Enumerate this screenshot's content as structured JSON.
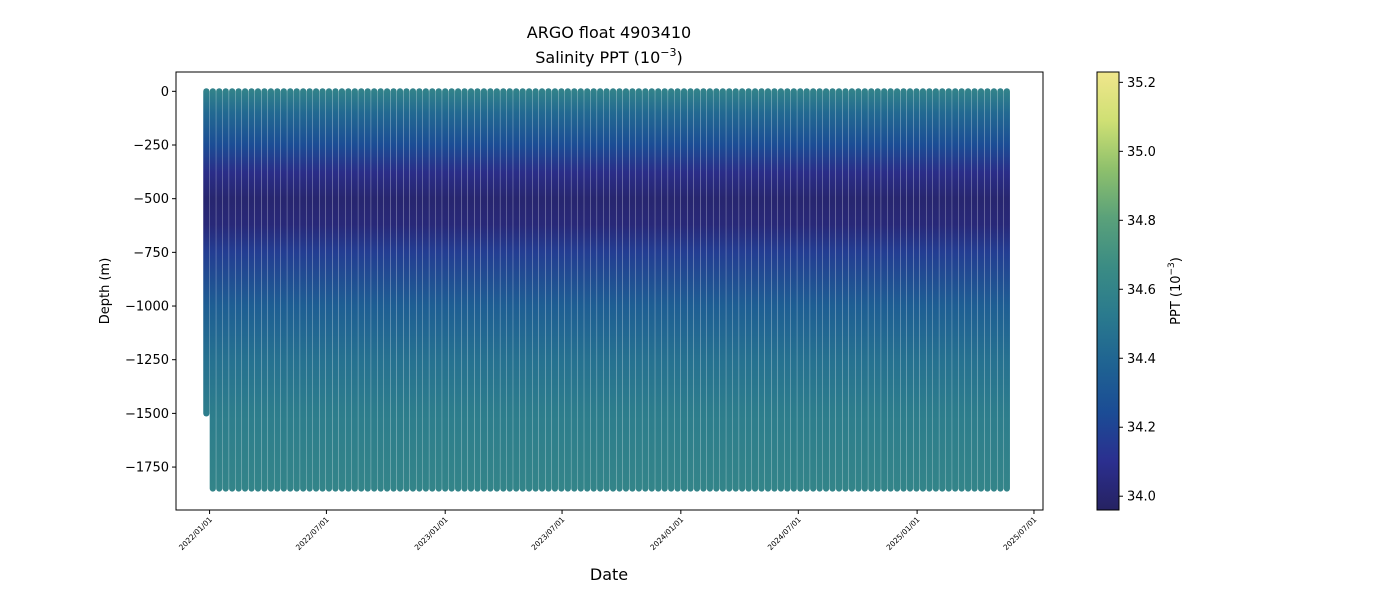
{
  "chart_data": {
    "type": "scatter",
    "title": "ARGO float 4903410",
    "subtitle": "Salinity PPT (10",
    "subtitle_exp": "−3",
    "subtitle_end": ")",
    "xlabel": "Date",
    "ylabel": "Depth (m)",
    "xlim": [
      "2021-11-10",
      "2025-07-15"
    ],
    "ylim": [
      -1950,
      90
    ],
    "x_ticks": [
      "2022/01/01",
      "2022/07/01",
      "2023/01/01",
      "2023/07/01",
      "2024/01/01",
      "2024/07/01",
      "2025/01/01",
      "2025/07/01"
    ],
    "x_tick_dates": [
      "2022-01-01",
      "2022-07-01",
      "2023-01-01",
      "2023-07-01",
      "2024-01-01",
      "2024-07-01",
      "2025-01-01",
      "2025-07-01"
    ],
    "y_ticks": [
      0,
      -250,
      -500,
      -750,
      -1000,
      -1250,
      -1500,
      -1750
    ],
    "y_tick_labels": [
      "0",
      "−250",
      "−500",
      "−750",
      "−1000",
      "−1250",
      "−1500",
      "−1750"
    ],
    "profile_start_date": "2021-12-27",
    "profile_end_date": "2025-05-23",
    "profile_interval_days": 10,
    "profile_bottom_depth": -1850,
    "first_profile_bottom_depth": -1500,
    "colorbar": {
      "label": "PPT (10",
      "label_exp": "−3",
      "label_end": ")",
      "range": [
        33.96,
        35.23
      ],
      "ticks": [
        "34.0",
        "34.2",
        "34.4",
        "34.6",
        "34.8",
        "35.0",
        "35.2"
      ],
      "tick_values": [
        34.0,
        34.2,
        34.4,
        34.6,
        34.8,
        35.0,
        35.2
      ],
      "colormap": [
        "#262262",
        "#2b2f8f",
        "#1b4c95",
        "#1f6392",
        "#2a7a8e",
        "#3b8c84",
        "#5aa17a",
        "#8ec06c",
        "#cfe074",
        "#f0e68c"
      ]
    },
    "salinity_profile": [
      {
        "depth": 0,
        "value": 34.58
      },
      {
        "depth": -100,
        "value": 34.42
      },
      {
        "depth": -250,
        "value": 34.25
      },
      {
        "depth": -380,
        "value": 34.08
      },
      {
        "depth": -500,
        "value": 34.0
      },
      {
        "depth": -620,
        "value": 34.03
      },
      {
        "depth": -750,
        "value": 34.17
      },
      {
        "depth": -1000,
        "value": 34.35
      },
      {
        "depth": -1250,
        "value": 34.47
      },
      {
        "depth": -1500,
        "value": 34.55
      },
      {
        "depth": -1850,
        "value": 34.6
      }
    ]
  }
}
